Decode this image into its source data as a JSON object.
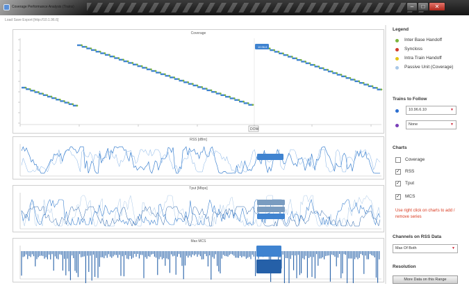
{
  "window": {
    "title": "Coverage Performance Analysis (Trains)",
    "toolbar_text": "Load  Save  Export  [http://10.1.96.6]"
  },
  "colors": {
    "series_blue": "#3f83d0",
    "series_dark_blue": "#2560a8",
    "inter_base_handoff": "#7ab43c",
    "syncloss": "#d23a2a",
    "intra_train_handoff": "#e3c416",
    "passive_unit": "#a9c8e8",
    "train_primary": "#2c6fd0",
    "train_secondary": "#7a3fb8",
    "hint": "#d9381e"
  },
  "icons": {
    "window_minimize": "minimize-icon",
    "window_maximize": "maximize-icon",
    "window_close": "close-icon",
    "select_caret": "caret-down-icon"
  },
  "charts": {
    "coverage": {
      "title": "Coverage",
      "x_marker": "DOW"
    },
    "rss": {
      "title": "RSS [dBm]"
    },
    "tput": {
      "title": "Tput [Mbps]"
    },
    "mcs": {
      "title": "Max MCS"
    }
  },
  "sidebar": {
    "legend_title": "Legend",
    "legend": [
      {
        "label": "Inter Base Handoff",
        "color": "#7ab43c"
      },
      {
        "label": "Syncloss",
        "color": "#d23a2a"
      },
      {
        "label": "Intra Train Handoff",
        "color": "#e3c416"
      },
      {
        "label": "Passive Unit (Coverage)",
        "color": "#a9c8e8"
      }
    ],
    "trains_title": "Trains to Follow",
    "trains": [
      {
        "value": "10.96.6.10",
        "color": "#2c6fd0"
      },
      {
        "value": "None",
        "color": "#7a3fb8"
      }
    ],
    "charts_title": "Charts",
    "chart_toggles": [
      {
        "label": "Coverage",
        "checked": false
      },
      {
        "label": "RSS",
        "checked": true
      },
      {
        "label": "Tput",
        "checked": true
      },
      {
        "label": "MCS",
        "checked": true
      }
    ],
    "hint": "Use right click on charts to add / remove series",
    "channels_title": "Channels on RSS Data",
    "channels_value": "Max Of Both",
    "resolution_title": "Resolution",
    "more_data_label": "More Data on this Range"
  }
}
